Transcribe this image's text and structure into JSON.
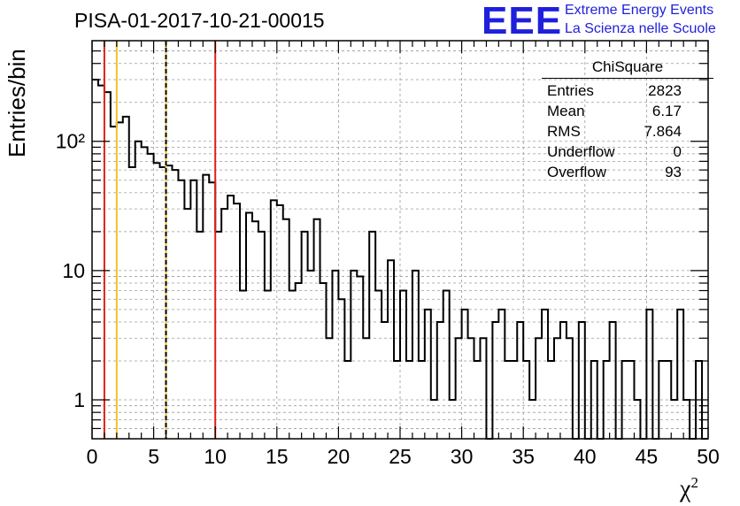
{
  "title": "PISA-01-2017-10-21-00015",
  "logo": {
    "text": "EEE",
    "line1": "Extreme Energy Events",
    "line2": "La Scienza nelle Scuole"
  },
  "stats": {
    "name": "ChiSquare",
    "rows": [
      {
        "label": "Entries",
        "value": "2823"
      },
      {
        "label": "Mean",
        "value": "6.17"
      },
      {
        "label": "RMS",
        "value": "7.864"
      },
      {
        "label": "Underflow",
        "value": "0"
      },
      {
        "label": "Overflow",
        "value": "93"
      }
    ]
  },
  "chart_data": {
    "type": "bar",
    "ylabel": "Entries/bin",
    "xlabel_main": "χ",
    "xlabel_sup": "2",
    "xlim": [
      0,
      50
    ],
    "ylim": [
      0.5,
      600
    ],
    "yscale": "log",
    "grid": true,
    "bin_width": 0.5,
    "xticks": [
      0,
      5,
      10,
      15,
      20,
      25,
      30,
      35,
      40,
      45,
      50
    ],
    "yticks": [
      {
        "value": 1,
        "label": "1"
      },
      {
        "value": 10,
        "label": "10"
      },
      {
        "value": 100,
        "label": "10²"
      }
    ],
    "values": [
      300,
      270,
      240,
      130,
      140,
      155,
      63,
      100,
      90,
      80,
      68,
      63,
      65,
      60,
      50,
      30,
      50,
      20,
      55,
      48,
      20,
      30,
      38,
      33,
      7,
      28,
      24,
      20,
      7,
      35,
      32,
      25,
      7,
      8,
      20,
      10,
      25,
      8,
      3,
      10,
      6,
      2,
      10,
      9,
      3,
      20,
      7,
      4,
      12,
      2,
      7,
      2,
      10,
      2,
      5,
      1,
      4,
      7,
      1,
      3,
      5,
      3,
      2,
      3,
      0,
      4,
      5,
      2,
      2,
      4,
      2,
      1,
      3,
      5,
      2,
      3,
      4,
      3,
      0,
      4,
      0,
      2,
      0,
      2,
      4,
      0,
      2,
      2,
      1,
      0,
      5,
      0,
      2,
      2,
      1,
      5,
      1,
      0,
      2,
      0
    ],
    "vlines": [
      {
        "x": 1,
        "color": "#e0201a",
        "style": "solid"
      },
      {
        "x": 2,
        "color": "#f2c028",
        "style": "solid"
      },
      {
        "x": 6,
        "color": "#f2c028",
        "style": "solid"
      },
      {
        "x": 6,
        "color": "#000000",
        "style": "dashed"
      },
      {
        "x": 10,
        "color": "#e0201a",
        "style": "solid"
      }
    ]
  }
}
